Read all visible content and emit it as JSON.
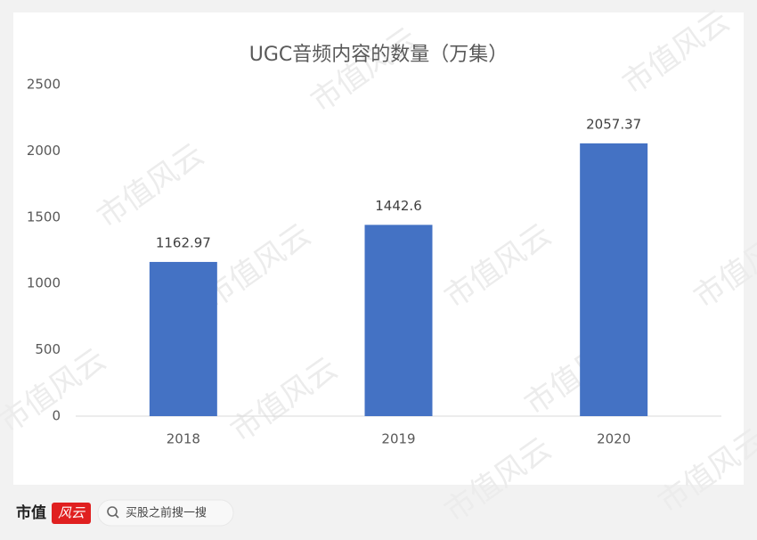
{
  "chart_data": {
    "type": "bar",
    "title": "UGC音频内容的数量（万集）",
    "categories": [
      "2018",
      "2019",
      "2020"
    ],
    "values": [
      1162.97,
      1442.6,
      2057.37
    ],
    "color": "#4472c4",
    "ylim": [
      0,
      2500
    ],
    "yticks": [
      0,
      500,
      1000,
      1500,
      2000,
      2500
    ],
    "grid": false
  },
  "watermark": "市值风云",
  "footer": {
    "brand": "市值",
    "brand_badge": "风云",
    "search_placeholder": "买股之前搜一搜"
  }
}
